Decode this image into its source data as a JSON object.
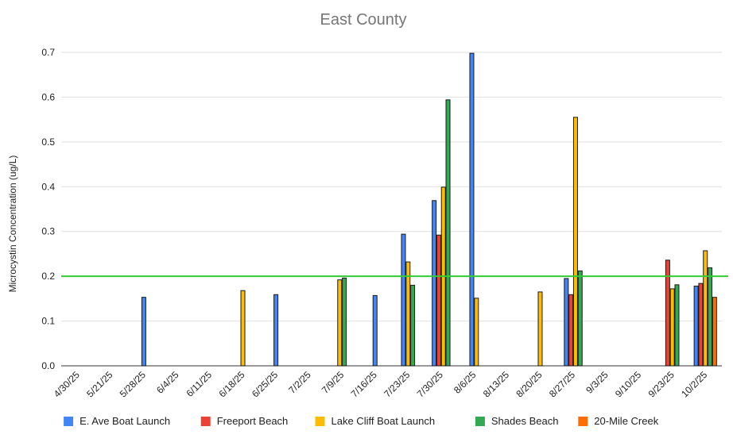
{
  "chart_data": {
    "type": "bar",
    "title": "East County",
    "xlabel": "",
    "ylabel": "Microcystin Concentration (ug/L)",
    "ylim": [
      0,
      0.7
    ],
    "yticks": [
      "0.0",
      "0.1",
      "0.2",
      "0.3",
      "0.4",
      "0.5",
      "0.6",
      "0.7"
    ],
    "grid": true,
    "legend_position": "bottom",
    "threshold": {
      "value": 0.2,
      "color": "#33cc33"
    },
    "categories": [
      "4/30/25",
      "5/21/25",
      "5/28/25",
      "6/4/25",
      "6/11/25",
      "6/18/25",
      "6/25/25",
      "7/2/25",
      "7/9/25",
      "7/16/25",
      "7/23/25",
      "7/30/25",
      "8/6/25",
      "8/13/25",
      "8/20/25",
      "8/27/25",
      "9/3/25",
      "9/10/25",
      "9/23/25",
      "10/2/25"
    ],
    "series": [
      {
        "name": "E. Ave Boat Launch",
        "color": "#4285f4",
        "values": [
          null,
          null,
          0.153,
          null,
          null,
          null,
          0.159,
          null,
          null,
          0.157,
          0.294,
          0.369,
          0.698,
          null,
          null,
          0.195,
          null,
          null,
          null,
          0.178
        ]
      },
      {
        "name": "Freeport Beach",
        "color": "#ea4335",
        "values": [
          null,
          null,
          null,
          null,
          null,
          null,
          null,
          null,
          null,
          null,
          null,
          0.292,
          null,
          null,
          null,
          0.159,
          null,
          null,
          0.236,
          0.184
        ]
      },
      {
        "name": "Lake Cliff Boat Launch",
        "color": "#fbbc04",
        "values": [
          null,
          null,
          null,
          null,
          null,
          0.168,
          null,
          null,
          0.192,
          null,
          0.232,
          0.399,
          0.151,
          null,
          0.165,
          0.555,
          null,
          null,
          0.172,
          0.257
        ]
      },
      {
        "name": "Shades Beach",
        "color": "#34a853",
        "values": [
          null,
          null,
          null,
          null,
          null,
          null,
          null,
          null,
          0.196,
          null,
          0.18,
          0.594,
          null,
          null,
          null,
          0.212,
          null,
          null,
          0.181,
          0.219
        ]
      },
      {
        "name": "20-Mile Creek",
        "color": "#ff6d01",
        "values": [
          null,
          null,
          null,
          null,
          null,
          null,
          null,
          null,
          null,
          null,
          null,
          null,
          null,
          null,
          null,
          null,
          null,
          null,
          null,
          0.153
        ]
      }
    ]
  }
}
